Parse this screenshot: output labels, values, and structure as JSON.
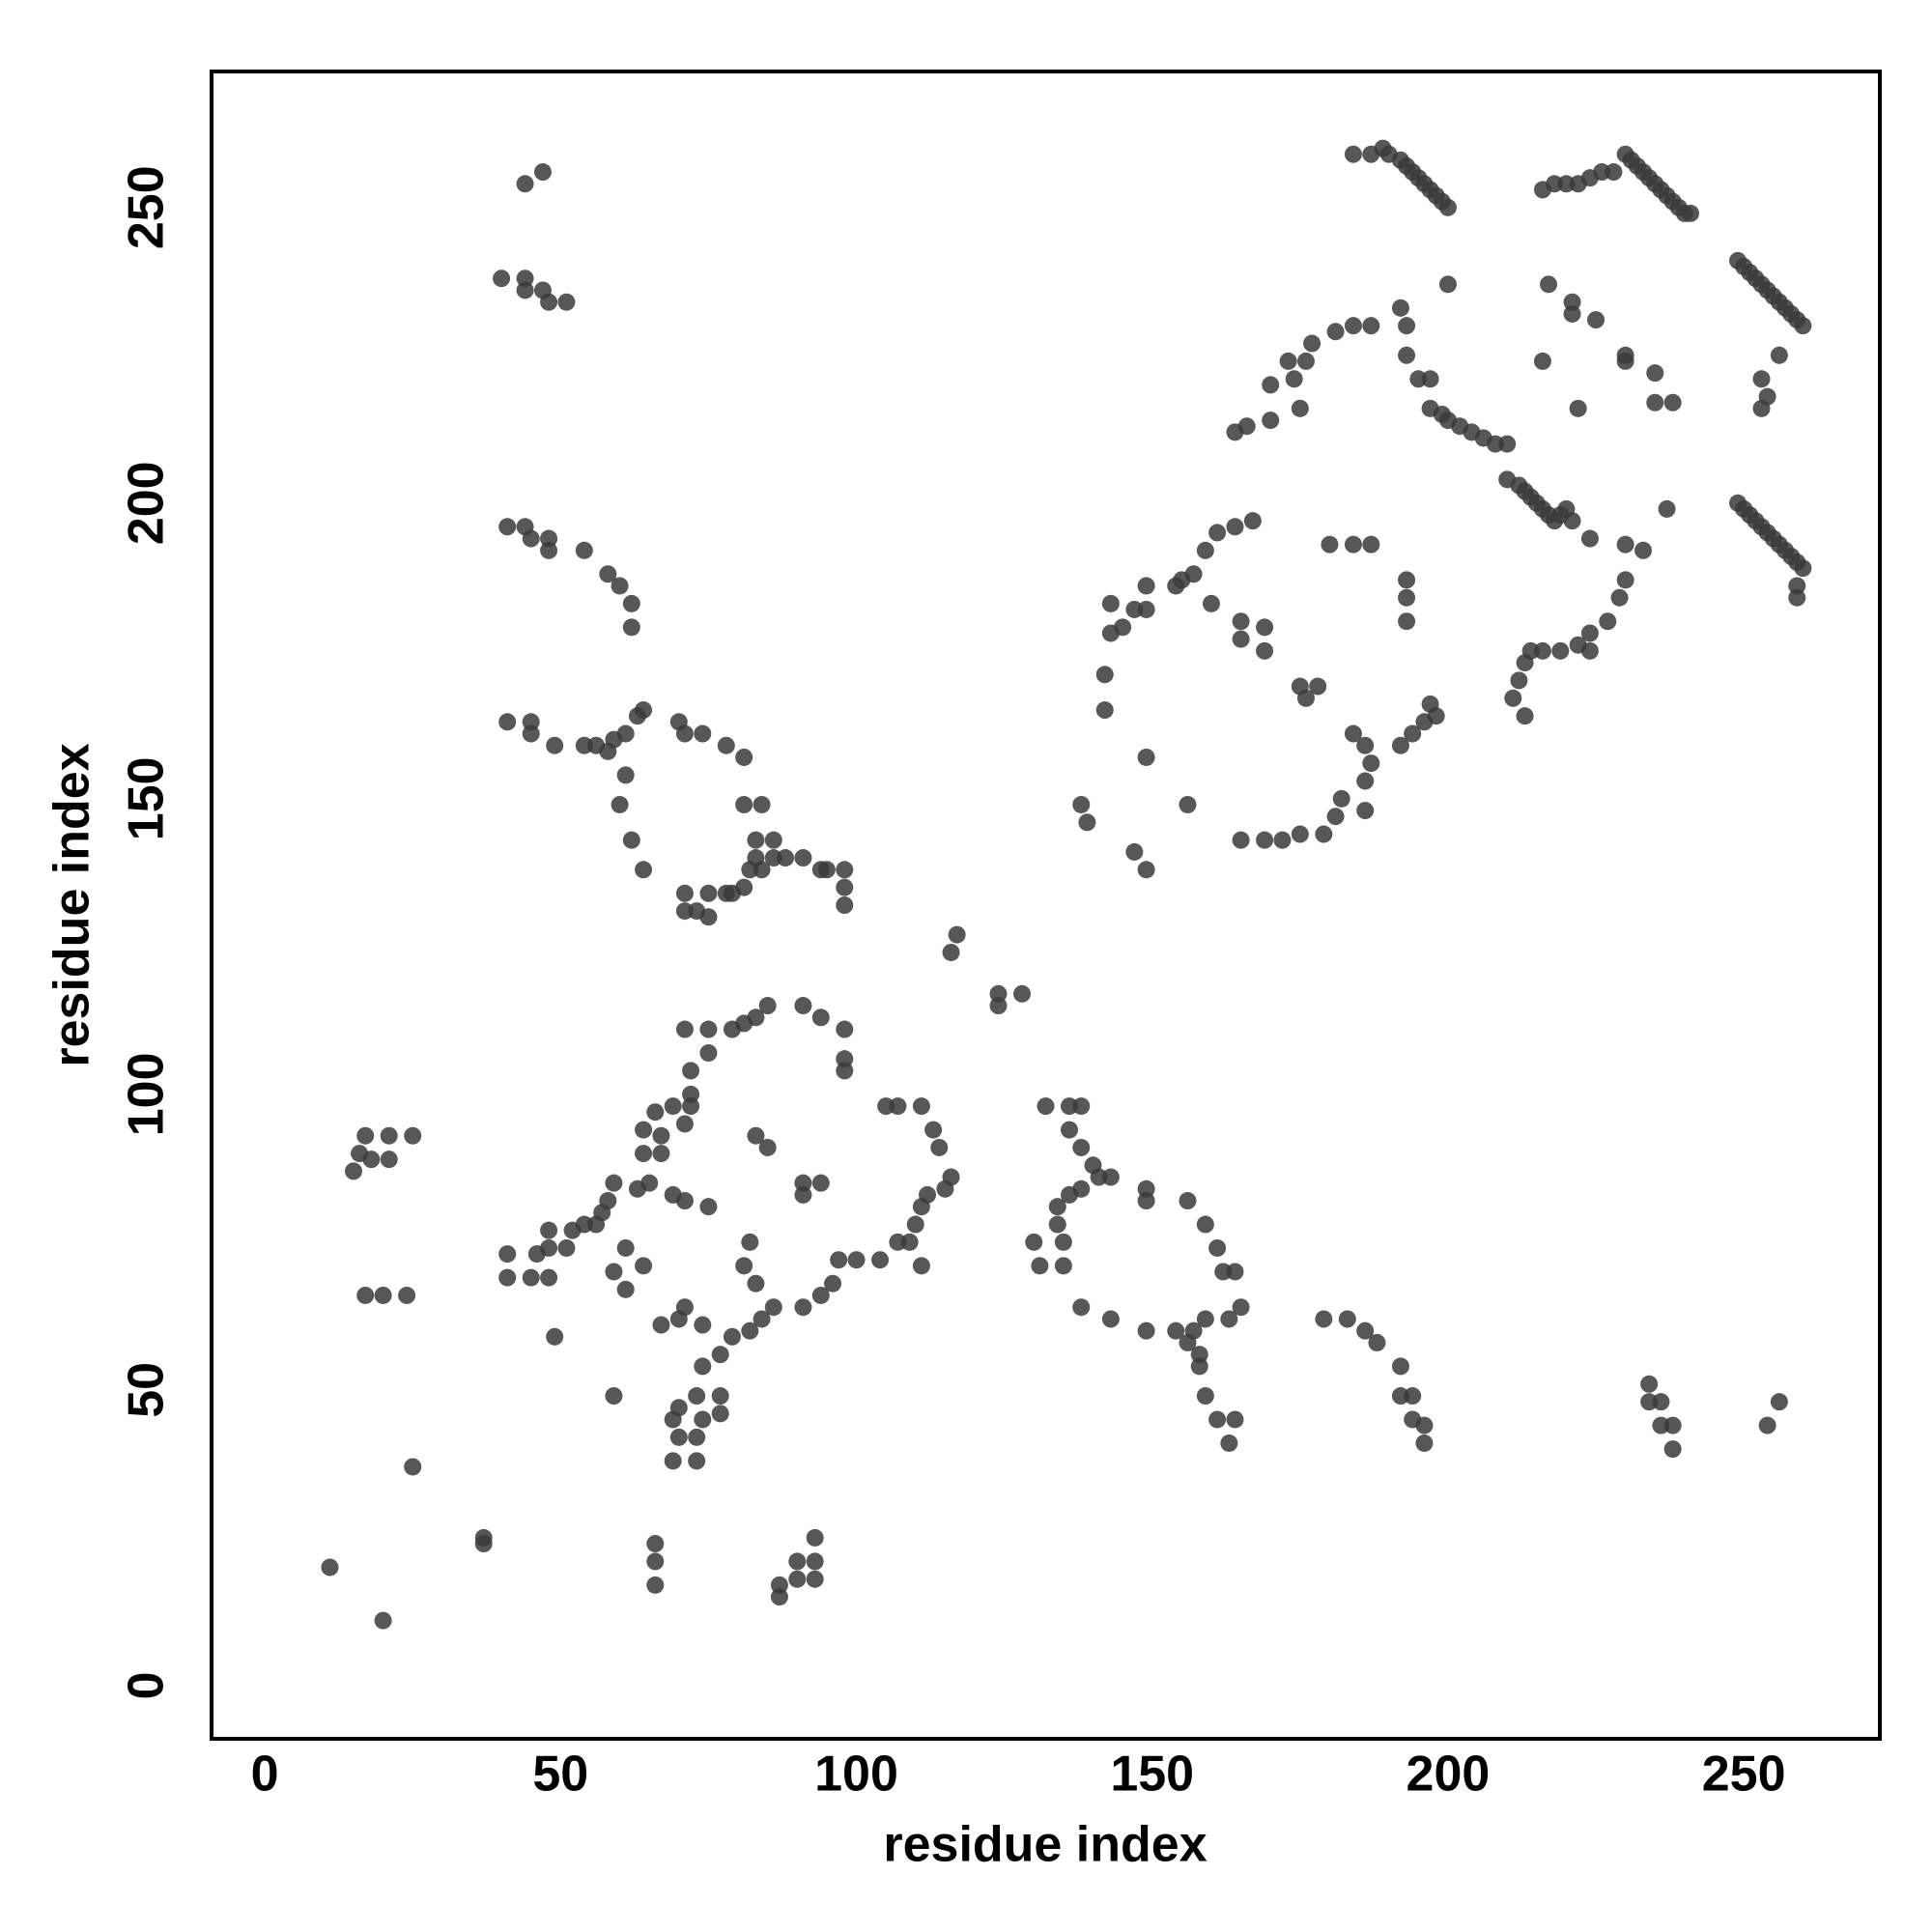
{
  "chart_data": {
    "type": "scatter",
    "xlabel": "residue index",
    "ylabel": "residue index",
    "xlim": [
      -9,
      273
    ],
    "ylim": [
      -9,
      273
    ],
    "xticks": [
      0,
      50,
      100,
      150,
      200,
      250
    ],
    "yticks": [
      0,
      50,
      100,
      150,
      200,
      250
    ],
    "color": "#3a3a3a",
    "x": [
      184,
      187,
      189,
      190,
      192,
      193,
      194,
      195,
      196,
      197,
      198,
      199,
      200,
      216,
      218,
      220,
      222,
      224,
      226,
      228,
      230,
      231,
      232,
      233,
      234,
      235,
      236,
      237,
      238,
      239,
      240,
      241,
      249,
      250,
      251,
      252,
      253,
      254,
      255,
      256,
      257,
      258,
      259,
      260,
      256,
      253,
      254,
      253,
      249,
      250,
      251,
      252,
      253,
      254,
      255,
      256,
      257,
      258,
      259,
      260,
      259,
      259,
      237,
      200,
      192,
      193,
      187,
      184,
      181,
      177,
      176,
      173,
      170,
      174,
      175,
      166,
      170,
      164,
      193,
      195,
      197,
      197,
      199,
      200,
      202,
      204,
      206,
      208,
      210,
      217,
      221,
      225,
      221,
      230,
      230,
      235,
      238,
      235,
      216,
      222,
      210,
      212,
      213,
      214,
      215,
      216,
      217,
      218,
      219,
      220,
      221,
      224,
      230,
      233,
      167,
      164,
      161,
      159,
      157,
      155,
      154,
      149,
      149,
      147,
      143,
      143,
      142,
      142,
      145,
      160,
      165,
      165,
      169,
      169,
      175,
      176,
      178,
      184,
      186,
      187,
      186,
      182,
      181,
      179,
      175,
      172,
      169,
      165,
      186,
      192,
      194,
      196,
      197,
      198,
      193,
      193,
      193,
      187,
      184,
      180,
      149,
      156,
      138,
      139,
      147,
      149,
      211,
      212,
      213,
      214,
      219,
      222,
      224,
      227,
      229,
      230,
      213,
      224,
      216,
      47,
      44,
      40,
      44,
      44,
      47,
      48,
      51,
      41,
      44,
      45,
      48,
      48,
      54,
      58,
      60,
      62,
      62,
      41,
      45,
      45,
      49,
      54,
      56,
      58,
      59,
      61,
      63,
      64,
      61,
      60,
      62,
      64,
      70,
      71,
      74,
      78,
      81,
      81,
      84,
      83,
      86,
      86,
      83,
      82,
      81,
      79,
      84,
      88,
      91,
      94,
      95,
      98,
      98,
      98,
      71,
      75,
      78,
      71,
      75,
      73,
      116,
      117,
      124,
      128,
      124,
      85,
      83,
      81,
      79,
      75,
      71,
      75,
      72,
      72,
      72,
      71,
      69,
      66,
      64,
      67,
      64,
      67,
      91,
      94,
      98,
      98,
      98,
      83,
      85,
      91,
      94,
      91,
      105,
      107,
      111,
      113,
      114,
      116,
      115,
      112,
      111,
      110,
      109,
      107,
      104,
      100,
      97,
      96,
      94,
      91,
      111,
      59,
      58,
      57,
      56,
      54,
      63,
      65,
      61,
      64,
      61,
      59,
      69,
      71,
      75,
      82,
      81,
      83,
      86,
      84,
      82,
      79,
      77,
      74,
      71,
      70,
      67,
      74,
      73,
      70,
      69,
      70,
      69,
      73,
      73,
      77,
      77,
      74,
      41,
      45,
      48,
      41,
      46,
      48,
      51,
      48,
      52,
      49,
      59,
      17,
      21,
      16,
      15,
      18,
      21,
      25,
      17,
      20,
      24,
      25,
      37,
      37,
      11,
      20,
      66,
      66,
      66,
      93,
      93,
      90,
      93,
      87,
      87,
      90,
      132,
      136,
      138,
      136,
      138,
      140,
      141,
      143,
      138,
      136,
      134,
      134,
      135,
      130,
      131,
      135,
      138,
      143,
      149,
      149,
      156,
      159,
      161,
      162,
      164,
      165,
      163,
      159,
      157,
      156,
      158,
      154,
      149,
      158,
      159,
      161,
      164,
      163,
      179,
      183,
      186,
      188,
      192,
      192,
      194,
      194,
      196,
      196,
      234,
      234,
      236,
      236,
      238,
      238,
      254,
      256
    ],
    "y": [
      259,
      259,
      260,
      259,
      258,
      257,
      256,
      255,
      254,
      253,
      252,
      251,
      250,
      253,
      254,
      254,
      254,
      255,
      256,
      256,
      259,
      258,
      257,
      256,
      255,
      254,
      253,
      252,
      251,
      250,
      249,
      249,
      241,
      240,
      239,
      238,
      237,
      236,
      235,
      234,
      233,
      232,
      231,
      230,
      225,
      221,
      218,
      216,
      200,
      199,
      198,
      197,
      196,
      195,
      194,
      193,
      192,
      191,
      190,
      189,
      186,
      184,
      199,
      237,
      233,
      230,
      230,
      230,
      229,
      227,
      224,
      224,
      220,
      221,
      216,
      213,
      214,
      212,
      225,
      221,
      221,
      216,
      215,
      214,
      213,
      212,
      211,
      210,
      210,
      237,
      234,
      231,
      232,
      225,
      224,
      222,
      217,
      217,
      224,
      216,
      204,
      203,
      202,
      201,
      200,
      199,
      198,
      197,
      198,
      199,
      197,
      194,
      193,
      192,
      197,
      196,
      195,
      192,
      188,
      187,
      186,
      186,
      182,
      182,
      183,
      178,
      171,
      165,
      179,
      183,
      180,
      177,
      179,
      175,
      169,
      167,
      169,
      161,
      159,
      156,
      153,
      150,
      147,
      144,
      144,
      143,
      143,
      143,
      148,
      159,
      161,
      163,
      166,
      164,
      180,
      184,
      187,
      193,
      193,
      193,
      157,
      149,
      149,
      146,
      141,
      138,
      167,
      170,
      173,
      175,
      175,
      176,
      178,
      180,
      184,
      187,
      164,
      175,
      175,
      256,
      254,
      238,
      238,
      236,
      236,
      234,
      234,
      196,
      196,
      194,
      194,
      192,
      192,
      188,
      186,
      183,
      179,
      163,
      163,
      161,
      159,
      159,
      159,
      158,
      160,
      161,
      164,
      165,
      154,
      149,
      143,
      138,
      163,
      161,
      161,
      159,
      157,
      149,
      149,
      143,
      143,
      140,
      140,
      138,
      135,
      134,
      138,
      140,
      140,
      138,
      138,
      138,
      135,
      132,
      134,
      134,
      134,
      131,
      130,
      131,
      124,
      127,
      117,
      117,
      115,
      115,
      113,
      112,
      111,
      111,
      111,
      107,
      104,
      100,
      98,
      95,
      98,
      97,
      94,
      93,
      90,
      90,
      115,
      113,
      111,
      106,
      104,
      93,
      91,
      85,
      85,
      83,
      98,
      98,
      98,
      94,
      91,
      86,
      84,
      83,
      81,
      78,
      75,
      75,
      72,
      72,
      72,
      68,
      66,
      64,
      71,
      85,
      82,
      80,
      78,
      78,
      84,
      85,
      74,
      71,
      67,
      70,
      83,
      82,
      81,
      75,
      71,
      68,
      64,
      62,
      60,
      59,
      56,
      61,
      64,
      62,
      61,
      54,
      49,
      47,
      45,
      42,
      38,
      38,
      42,
      46,
      49,
      45,
      69,
      69,
      69,
      73,
      73,
      74,
      74,
      77,
      77,
      59,
      49,
      93,
      93,
      90,
      87,
      89,
      89,
      93,
      66,
      66,
      66,
      37,
      25,
      24,
      20,
      11,
      24,
      21,
      17,
      25,
      21,
      21,
      18,
      17,
      15,
      18,
      98,
      98,
      98,
      94,
      91,
      88,
      86,
      86,
      84,
      83,
      81,
      78,
      75,
      75,
      71,
      71,
      64,
      62,
      84,
      82,
      82,
      78,
      74,
      70,
      70,
      64,
      62,
      62,
      60,
      58,
      56,
      60,
      60,
      54,
      49,
      45,
      45,
      41,
      62,
      62,
      60,
      58,
      54,
      49,
      49,
      45,
      44,
      41,
      51,
      48,
      48,
      44,
      44,
      40,
      44,
      48
    ]
  }
}
